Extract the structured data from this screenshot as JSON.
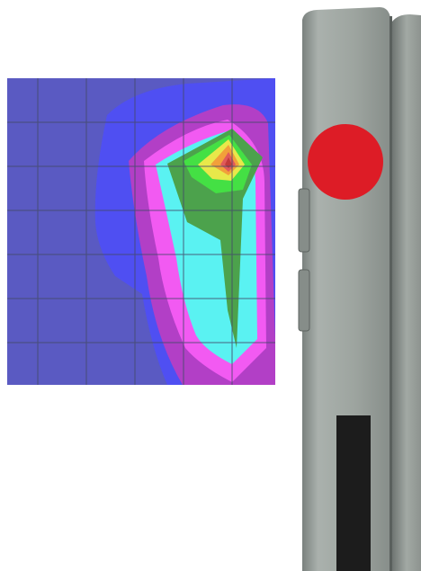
{
  "figure": {
    "heatmap": {
      "description_free": true,
      "grid": true,
      "grid_columns": 6,
      "grid_rows": 7,
      "levels": [
        {
          "level": 0,
          "color": "#5a5ac2"
        },
        {
          "level": 1,
          "color": "#4f4ff2"
        },
        {
          "level": 2,
          "color": "#b23fc6"
        },
        {
          "level": 3,
          "color": "#f25af2"
        },
        {
          "level": 4,
          "color": "#5af2f2"
        },
        {
          "level": 5,
          "color": "#4ca24c"
        },
        {
          "level": 6,
          "color": "#44e044"
        },
        {
          "level": 7,
          "color": "#e8e84a"
        },
        {
          "level": 8,
          "color": "#f2a03a"
        },
        {
          "level": 9,
          "color": "#e05a5a"
        },
        {
          "level": 10,
          "color": "#c23a3a"
        }
      ]
    },
    "device": {
      "body_color": "#9ea5a0",
      "marker_color": "#dd1c26",
      "slot_color": "#1c1c1c"
    }
  }
}
